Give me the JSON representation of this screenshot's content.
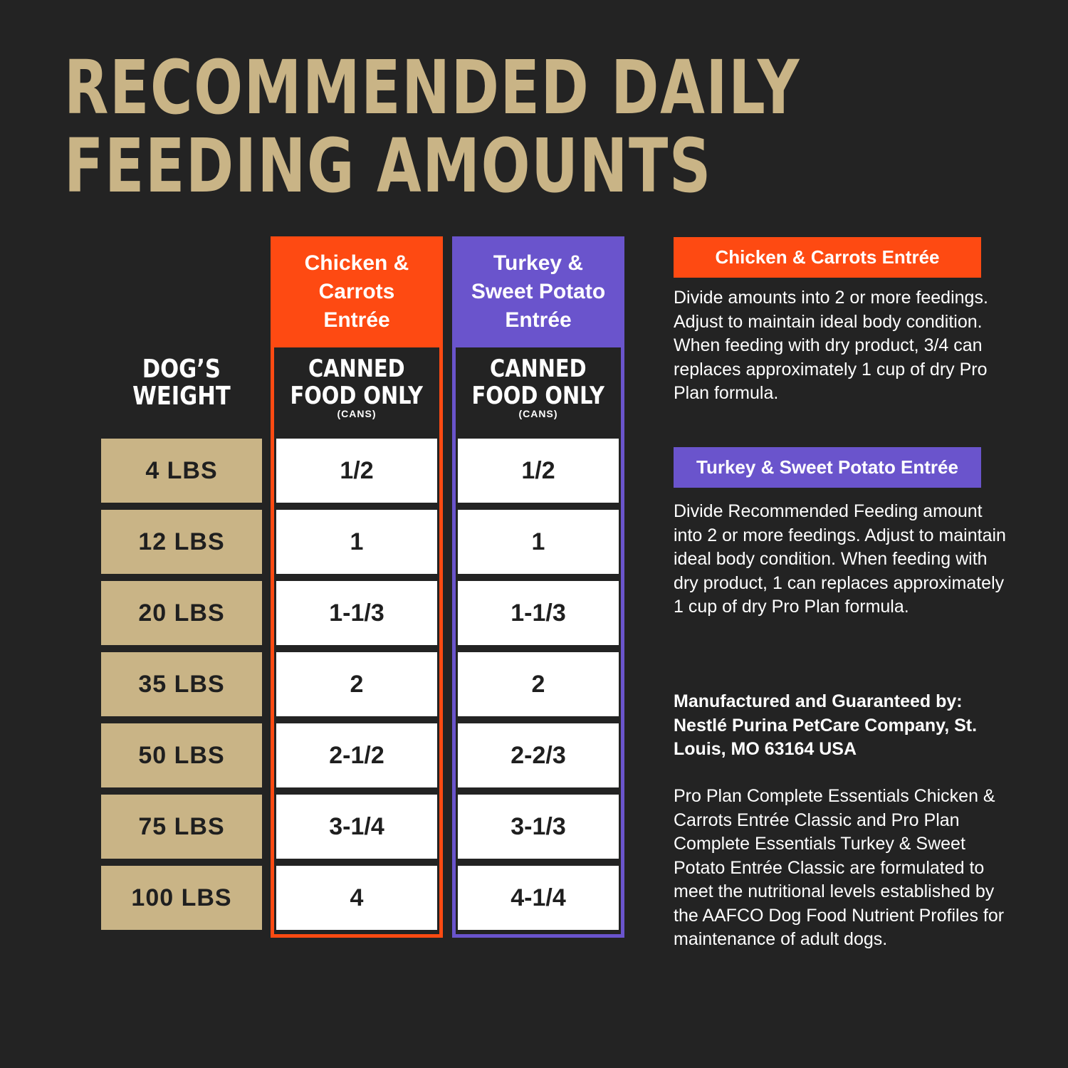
{
  "title": {
    "line1": "RECOMMENDED DAILY",
    "line2": "FEEDING AMOUNTS"
  },
  "table": {
    "weight_header_line1": "DOG’S",
    "weight_header_line2": "WEIGHT",
    "weights": [
      "4 LBS",
      "12 LBS",
      "20 LBS",
      "35 LBS",
      "50 LBS",
      "75 LBS",
      "100 LBS"
    ],
    "columns": [
      {
        "product_line1": "Chicken &",
        "product_line2": "Carrots",
        "product_line3": "Entrée",
        "sub_line1": "CANNED",
        "sub_line2": "FOOD ONLY",
        "units": "(CANS)",
        "color": "#fe4a12",
        "values": [
          "1/2",
          "1",
          "1-1/3",
          "2",
          "2-1/2",
          "3-1/4",
          "4"
        ]
      },
      {
        "product_line1": "Turkey &",
        "product_line2": "Sweet Potato",
        "product_line3": "Entrée",
        "sub_line1": "CANNED",
        "sub_line2": "FOOD ONLY",
        "units": "(CANS)",
        "color": "#6a54cc",
        "values": [
          "1/2",
          "1",
          "1-1/3",
          "2",
          "2-2/3",
          "3-1/3",
          "4-1/4"
        ]
      }
    ]
  },
  "notes": {
    "chicken_label": "Chicken & Carrots Entrée",
    "chicken_text": "Divide amounts into 2 or more feedings. Adjust to maintain ideal body condition. When feeding with dry product, 3/4 can replaces approximately 1 cup of dry Pro Plan formula.",
    "turkey_label": "Turkey & Sweet Potato Entrée",
    "turkey_text": "Divide Recommended Feeding amount into 2 or more feedings. Adjust to maintain ideal body condition. When feeding with dry product, 1 can replaces approximately 1 cup of dry Pro Plan formula.",
    "manufacturer": "Manufactured and Guaranteed by: Nestlé Purina PetCare Company, St. Louis, MO 63164 USA",
    "aafco": "Pro Plan Complete Essentials Chicken & Carrots Entrée Classic and Pro Plan Complete Essentials Turkey & Sweet Potato Entrée Classic are formulated to meet the nutritional levels established by the AAFCO Dog Food Nutrient Profiles for maintenance of adult dogs."
  },
  "colors": {
    "background": "#232323",
    "gold": "#c9b486",
    "orange": "#fe4a12",
    "purple": "#6a54cc"
  }
}
